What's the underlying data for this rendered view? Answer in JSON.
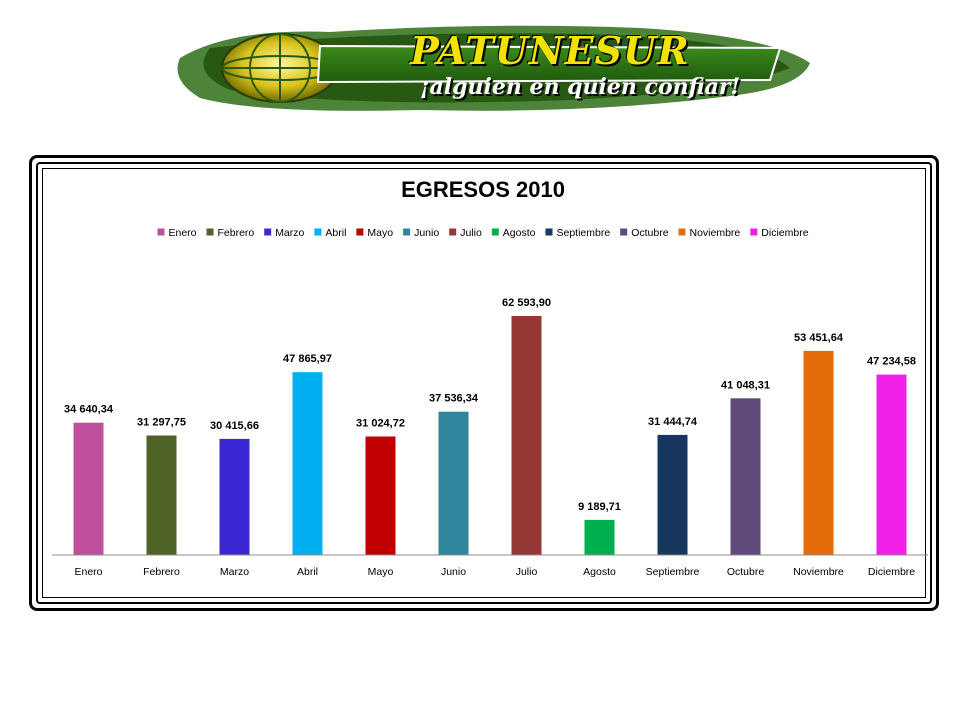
{
  "logo": {
    "name": "PATUNESUR",
    "tagline": "¡alguien en quien confiar!"
  },
  "colors": {
    "Enero": "#c0509e",
    "Febrero": "#4f6228",
    "Marzo": "#3b27d1",
    "Abril": "#00b0f0",
    "Mayo": "#c00000",
    "Junio": "#31859c",
    "Julio": "#953735",
    "Agosto": "#00b050",
    "Septiembre": "#17375e",
    "Octubre": "#604a7b",
    "Noviembre": "#e36c09",
    "Diciembre": "#f020e8"
  },
  "chart_data": {
    "type": "bar",
    "title": "EGRESOS  2010",
    "categories": [
      "Enero",
      "Febrero",
      "Marzo",
      "Abril",
      "Mayo",
      "Junio",
      "Julio",
      "Agosto",
      "Septiembre",
      "Octubre",
      "Noviembre",
      "Diciembre"
    ],
    "values": [
      34640.34,
      31297.75,
      30415.66,
      47865.97,
      31024.72,
      37536.34,
      62593.9,
      9189.71,
      31444.74,
      41048.31,
      53451.64,
      47234.58
    ],
    "data_labels": [
      "34 640,34",
      "31 297,75",
      "30 415,66",
      "47 865,97",
      "31 024,72",
      "37 536,34",
      "62 593,90",
      "9 189,71",
      "31 444,74",
      "41 048,31",
      "53 451,64",
      "47 234,58"
    ],
    "legend": [
      "Enero",
      "Febrero",
      "Marzo",
      "Abril",
      "Mayo",
      "Junio",
      "Julio",
      "Agosto",
      "Septiembre",
      "Octubre",
      "Noviembre",
      "Diciembre"
    ],
    "legend_position": "top",
    "ylim": [
      0,
      70000
    ],
    "grid": false,
    "xlabel": "",
    "ylabel": ""
  }
}
